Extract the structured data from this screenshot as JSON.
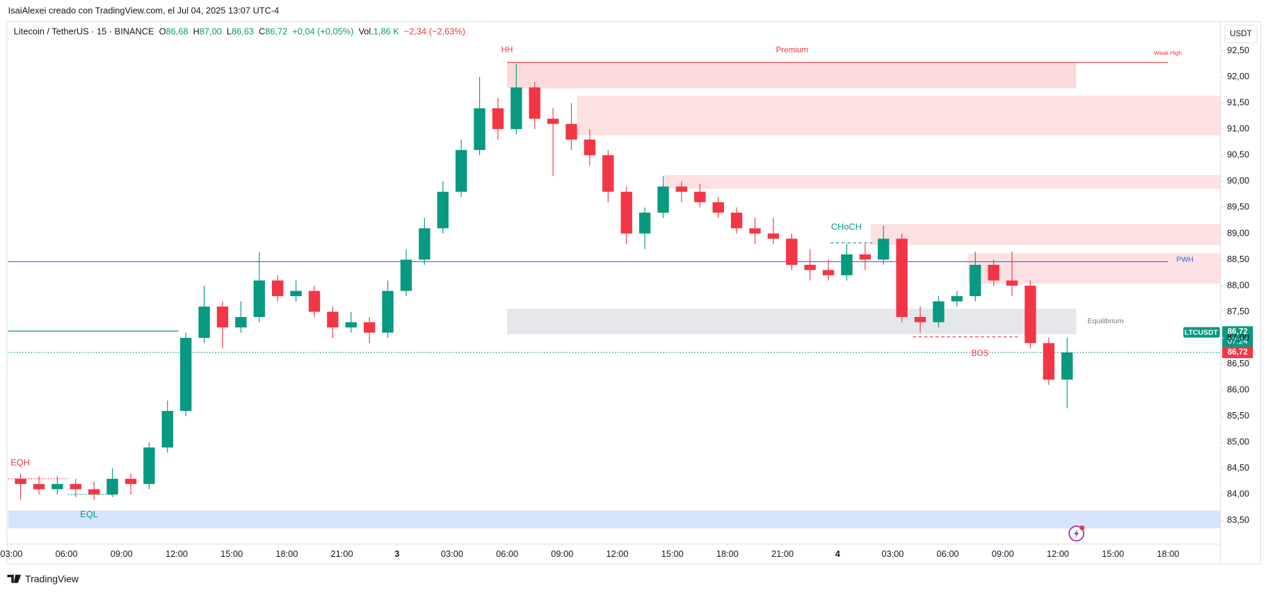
{
  "header": {
    "attribution": "IsaiAlexei creado con TradingView.com, el Jul 04, 2025 13:07 UTC-4",
    "symbol": "Litecoin / TetherUS · 15 · BINANCE",
    "legend": [
      {
        "label": "O",
        "value": "86,68"
      },
      {
        "label": "H",
        "value": "87,00"
      },
      {
        "label": "L",
        "value": "86,63"
      },
      {
        "label": "C",
        "value": "86,72"
      }
    ],
    "change": "+0,04 (+0,05%)",
    "vol_label": "Vol.",
    "vol": "1,86 K",
    "vol_change": "−2,34 (−2,63%)",
    "currency": "USDT"
  },
  "footer": {
    "brand": "TradingView"
  },
  "annotations": {
    "hh": "HH",
    "premium": "Premium",
    "weak_high": "Weak High",
    "eqh": "EQH",
    "eql": "EQL",
    "choch": "CHoCH",
    "bos": "BOS",
    "pwh": "PWH",
    "equilibrium": "Equilibrium"
  },
  "price_tag": {
    "symbol": "LTCUSDT",
    "value": 86.72,
    "label": "86,72",
    "countdown": "07:24"
  },
  "chart_data": {
    "type": "candlestick",
    "up_color": "#089981",
    "down_color": "#f23645",
    "x": [
      3,
      4,
      5,
      6,
      7,
      8,
      9,
      10,
      11,
      12,
      13,
      14,
      15,
      16,
      17,
      18,
      19,
      20,
      21,
      22,
      23,
      24,
      25,
      26,
      27,
      28,
      29,
      30,
      31,
      32,
      33,
      34,
      35,
      36,
      37,
      38,
      39,
      40,
      41,
      42,
      43,
      44,
      45,
      46,
      47,
      48,
      49,
      50,
      51,
      52,
      53,
      54,
      55,
      56,
      57,
      58,
      59,
      60
    ],
    "open": [
      84.3,
      84.2,
      84.1,
      84.2,
      84.1,
      84.0,
      84.3,
      84.2,
      84.9,
      85.6,
      87.0,
      87.6,
      87.2,
      87.4,
      88.1,
      87.8,
      87.9,
      87.5,
      87.2,
      87.3,
      87.1,
      87.9,
      88.5,
      89.1,
      89.8,
      90.6,
      91.4,
      91.0,
      91.8,
      91.2,
      91.1,
      90.8,
      90.5,
      89.8,
      89.0,
      89.4,
      89.9,
      89.8,
      89.6,
      89.4,
      89.1,
      89.0,
      88.9,
      88.4,
      88.3,
      88.2,
      88.6,
      88.5,
      88.9,
      87.4,
      87.3,
      87.7,
      87.8,
      88.4,
      88.1,
      88.0,
      86.9,
      86.2
    ],
    "high": [
      84.4,
      84.35,
      84.35,
      84.3,
      84.25,
      84.5,
      84.4,
      85.0,
      85.8,
      87.1,
      88.0,
      87.7,
      87.7,
      88.65,
      88.2,
      88.1,
      88.0,
      87.6,
      87.5,
      87.4,
      88.1,
      88.7,
      89.3,
      90.0,
      90.8,
      92.0,
      91.6,
      92.25,
      91.9,
      91.4,
      91.5,
      91.0,
      90.6,
      89.9,
      89.5,
      90.1,
      90.0,
      89.95,
      89.7,
      89.5,
      89.3,
      89.3,
      89.0,
      88.7,
      88.5,
      88.8,
      88.8,
      89.15,
      89.0,
      87.6,
      87.8,
      87.9,
      88.65,
      88.5,
      88.65,
      88.1,
      87.0,
      87.0
    ],
    "low": [
      83.9,
      84.0,
      84.0,
      83.95,
      83.9,
      83.95,
      84.0,
      84.1,
      84.8,
      85.5,
      86.9,
      86.8,
      87.1,
      87.3,
      87.7,
      87.7,
      87.4,
      87.0,
      87.1,
      86.9,
      87.0,
      87.8,
      88.4,
      89.0,
      89.7,
      90.5,
      90.8,
      90.9,
      91.0,
      90.1,
      90.6,
      90.3,
      89.6,
      88.8,
      88.7,
      89.3,
      89.6,
      89.5,
      89.3,
      89.0,
      88.8,
      88.8,
      88.3,
      88.1,
      88.1,
      88.1,
      88.3,
      88.4,
      87.3,
      87.1,
      87.2,
      87.6,
      87.7,
      88.0,
      87.8,
      86.8,
      86.1,
      85.65
    ],
    "close": [
      84.2,
      84.1,
      84.2,
      84.1,
      84.0,
      84.3,
      84.2,
      84.9,
      85.6,
      87.0,
      87.6,
      87.2,
      87.4,
      88.1,
      87.8,
      87.9,
      87.5,
      87.2,
      87.3,
      87.1,
      87.9,
      88.5,
      89.1,
      89.8,
      90.6,
      91.4,
      91.0,
      91.8,
      91.2,
      91.1,
      90.8,
      90.5,
      89.8,
      89.0,
      89.4,
      89.9,
      89.8,
      89.6,
      89.4,
      89.1,
      89.0,
      88.9,
      88.4,
      88.3,
      88.2,
      88.6,
      88.5,
      88.9,
      87.4,
      87.3,
      87.7,
      87.8,
      88.4,
      88.1,
      88.0,
      86.9,
      86.2,
      86.72
    ],
    "xlim": [
      2.82,
      68.86
    ],
    "ylim": [
      83.05,
      93.04
    ],
    "xticks": [
      {
        "value": 3,
        "label": "03:00"
      },
      {
        "value": 6,
        "label": "06:00"
      },
      {
        "value": 9,
        "label": "09:00"
      },
      {
        "value": 12,
        "label": "12:00"
      },
      {
        "value": 15,
        "label": "15:00"
      },
      {
        "value": 18,
        "label": "18:00"
      },
      {
        "value": 21,
        "label": "21:00"
      },
      {
        "value": 24,
        "label": "3"
      },
      {
        "value": 27,
        "label": "03:00"
      },
      {
        "value": 30,
        "label": "06:00"
      },
      {
        "value": 33,
        "label": "09:00"
      },
      {
        "value": 36,
        "label": "12:00"
      },
      {
        "value": 39,
        "label": "15:00"
      },
      {
        "value": 42,
        "label": "18:00"
      },
      {
        "value": 45,
        "label": "21:00"
      },
      {
        "value": 48,
        "label": "4"
      },
      {
        "value": 51,
        "label": "03:00"
      },
      {
        "value": 54,
        "label": "06:00"
      },
      {
        "value": 57,
        "label": "09:00"
      },
      {
        "value": 60,
        "label": "12:00"
      },
      {
        "value": 63,
        "label": "15:00"
      },
      {
        "value": 66,
        "label": "18:00"
      }
    ],
    "yticks": [
      {
        "value": 83.5,
        "label": "83,50"
      },
      {
        "value": 84,
        "label": "84,00"
      },
      {
        "value": 84.5,
        "label": "84,50"
      },
      {
        "value": 85,
        "label": "85,00"
      },
      {
        "value": 85.5,
        "label": "85,50"
      },
      {
        "value": 86,
        "label": "86,00"
      },
      {
        "value": 86.5,
        "label": "86,50"
      },
      {
        "value": 87,
        "label": "87,00"
      },
      {
        "value": 87.5,
        "label": "87,50"
      },
      {
        "value": 88,
        "label": "88,00"
      },
      {
        "value": 88.5,
        "label": "88,50"
      },
      {
        "value": 89,
        "label": "89,00"
      },
      {
        "value": 89.5,
        "label": "89,50"
      },
      {
        "value": 90,
        "label": "90,00"
      },
      {
        "value": 90.5,
        "label": "90,50"
      },
      {
        "value": 91,
        "label": "91,00"
      },
      {
        "value": 91.5,
        "label": "91,50"
      },
      {
        "value": 92,
        "label": "92,00"
      },
      {
        "value": 92.5,
        "label": "92,50"
      }
    ],
    "zones": [
      {
        "x": [
          30,
          61
        ],
        "y": [
          91.78,
          92.28
        ],
        "color": "#fcdadb"
      },
      {
        "x": [
          33.8,
          68.86
        ],
        "y": [
          90.88,
          91.64
        ],
        "color": "#fde0e1"
      },
      {
        "x": [
          38.55,
          68.86
        ],
        "y": [
          89.86,
          90.12
        ],
        "color": "#fde0e1"
      },
      {
        "x": [
          49.8,
          68.86
        ],
        "y": [
          88.78,
          89.18
        ],
        "color": "#fde0e1"
      },
      {
        "x": [
          55.1,
          68.86
        ],
        "y": [
          88.04,
          88.62
        ],
        "color": "#fde0e1"
      },
      {
        "x": [
          30,
          61
        ],
        "y": [
          87.07,
          87.56
        ],
        "color": "#e6e7ea"
      },
      {
        "x": [
          2.82,
          68.86
        ],
        "y": [
          83.35,
          83.69
        ],
        "color": "#d6e4fd"
      }
    ],
    "lines": [
      {
        "x": [
          30,
          66
        ],
        "y": 92.28,
        "color": "#f23645",
        "style": "solid"
      },
      {
        "x": [
          2.82,
          66
        ],
        "y": 88.46,
        "color": "#2962ff",
        "style": "solid"
      },
      {
        "x": [
          2.82,
          12.1
        ],
        "y": 87.13,
        "color": "#089981",
        "style": "solid"
      },
      {
        "x": [
          2.82,
          68.86
        ],
        "y": 86.72,
        "color": "#089981",
        "style": "dotted"
      },
      {
        "x": [
          47.6,
          49.9
        ],
        "y": 88.82,
        "color": "#089981",
        "style": "dashed"
      },
      {
        "x": [
          52.1,
          57.9
        ],
        "y": 87.02,
        "color": "#f23645",
        "style": "dashed"
      },
      {
        "x": [
          6.1,
          8.6
        ],
        "y": 84.0,
        "color": "#089981",
        "style": "dotted"
      },
      {
        "x": [
          2.82,
          6.1
        ],
        "y": 84.3,
        "color": "#f23645",
        "style": "dotted"
      }
    ]
  }
}
